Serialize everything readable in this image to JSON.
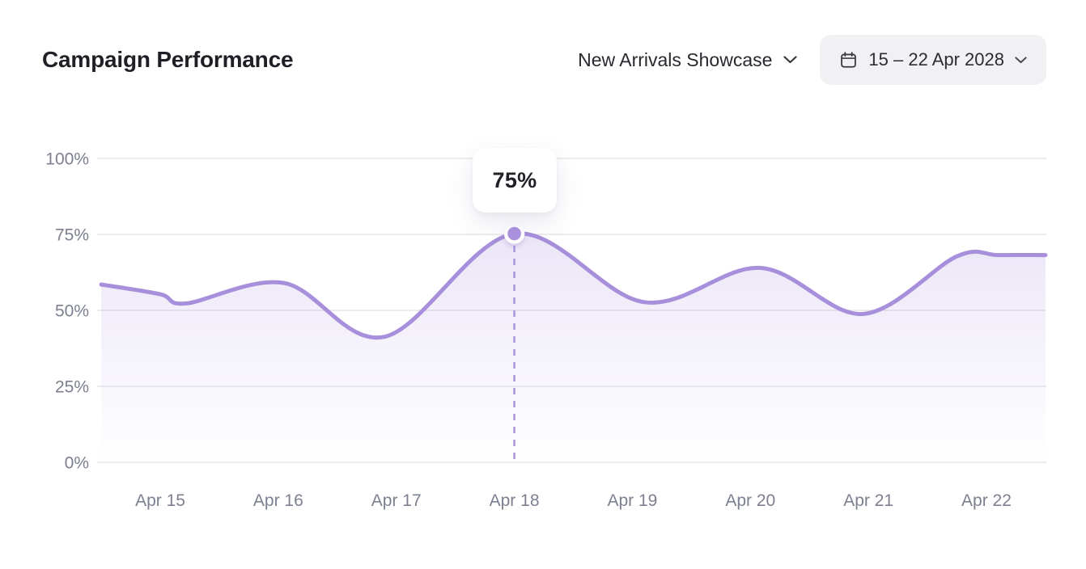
{
  "header": {
    "title": "Campaign Performance",
    "campaign_selector": {
      "label": "New Arrivals Showcase"
    },
    "date_range_picker": {
      "label": "15 – 22 Apr 2028"
    }
  },
  "chart_data": {
    "type": "area",
    "title": "Campaign Performance",
    "categories": [
      "Apr 15",
      "Apr 16",
      "Apr 17",
      "Apr 18",
      "Apr 19",
      "Apr 20",
      "Apr 21",
      "Apr 22"
    ],
    "values": [
      55,
      58,
      41,
      75,
      53,
      64,
      49,
      68
    ],
    "unit": "%",
    "ylim": [
      0,
      100
    ],
    "y_ticks": [
      100,
      75,
      50,
      25,
      0
    ],
    "y_tick_labels": [
      "100%",
      "75%",
      "50%",
      "25%",
      "0%"
    ],
    "xlabel": "",
    "ylabel": "",
    "grid": "horizontal",
    "legend": "none",
    "highlight": {
      "category": "Apr 18",
      "value": 75,
      "tooltip_label": "75%"
    },
    "curve_anchors": [
      {
        "day_offset": -0.5,
        "value": 58.5
      },
      {
        "day_offset": 0.0,
        "value": 55.3
      },
      {
        "day_offset": 0.22,
        "value": 52.3
      },
      {
        "day_offset": 1.05,
        "value": 59.0
      },
      {
        "day_offset": 1.9,
        "value": 41.3
      },
      {
        "day_offset": 3.0,
        "value": 75.2
      },
      {
        "day_offset": 4.1,
        "value": 52.7
      },
      {
        "day_offset": 5.08,
        "value": 64.0
      },
      {
        "day_offset": 5.95,
        "value": 48.8
      },
      {
        "day_offset": 6.75,
        "value": 67.8
      },
      {
        "day_offset": 7.1,
        "value": 68.2
      },
      {
        "day_offset": 7.5,
        "value": 68.2
      }
    ],
    "colors": {
      "line": "#a78fdb",
      "marker": "#ab92de",
      "fill_top": "rgba(167,143,219,0.30)",
      "fill_bottom": "rgba(167,143,219,0)",
      "gridline": "#e6e5e9",
      "axis_label": "#7c8090",
      "dashed_guide": "#a995dc",
      "chip_background": "#f1f0f2"
    }
  }
}
